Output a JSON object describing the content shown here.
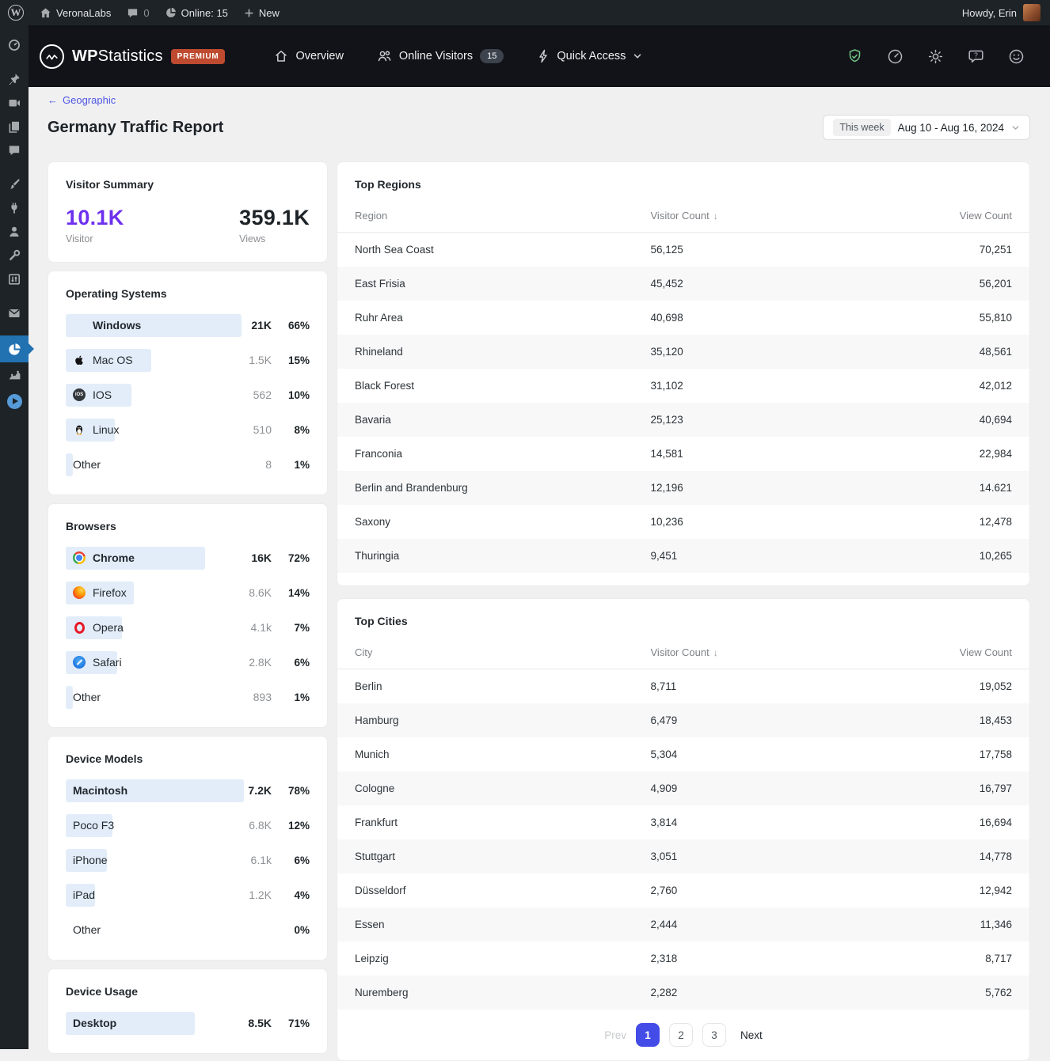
{
  "admin_bar": {
    "site_name": "VeronaLabs",
    "comments_count": "0",
    "online_label": "Online: 15",
    "new_label": "New",
    "howdy": "Howdy, Erin"
  },
  "plugin_header": {
    "brand_wp": "WP",
    "brand_rest": "Statistics",
    "premium": "PREMIUM",
    "nav_overview": "Overview",
    "nav_online": "Online Visitors",
    "online_badge": "15",
    "nav_quick": "Quick Access"
  },
  "page": {
    "back_arrow": "←",
    "breadcrumb_back": "Geographic",
    "title": "Germany Traffic Report",
    "date_chip": "This week",
    "date_range": "Aug 10 - Aug 16, 2024"
  },
  "summary": {
    "title": "Visitor Summary",
    "visitor_value": "10.1K",
    "visitor_label": "Visitor",
    "views_value": "359.1K",
    "views_label": "Views"
  },
  "cards": {
    "os": {
      "title": "Operating Systems",
      "items": [
        {
          "label": "Windows",
          "value": "21K",
          "pct": "66%",
          "bar": "72%"
        },
        {
          "label": "Mac OS",
          "value": "1.5K",
          "pct": "15%",
          "bar": "35%"
        },
        {
          "label": "IOS",
          "value": "562",
          "pct": "10%",
          "bar": "27%"
        },
        {
          "label": "Linux",
          "value": "510",
          "pct": "8%",
          "bar": "20%"
        },
        {
          "label": "Other",
          "value": "8",
          "pct": "1%",
          "bar": "3%"
        }
      ]
    },
    "browsers": {
      "title": "Browsers",
      "items": [
        {
          "label": "Chrome",
          "value": "16K",
          "pct": "72%",
          "bar": "57%"
        },
        {
          "label": "Firefox",
          "value": "8.6K",
          "pct": "14%",
          "bar": "28%"
        },
        {
          "label": "Opera",
          "value": "4.1k",
          "pct": "7%",
          "bar": "23%"
        },
        {
          "label": "Safari",
          "value": "2.8K",
          "pct": "6%",
          "bar": "21%"
        },
        {
          "label": "Other",
          "value": "893",
          "pct": "1%",
          "bar": "3%"
        }
      ]
    },
    "models": {
      "title": "Device Models",
      "items": [
        {
          "label": "Macintosh",
          "value": "7.2K",
          "pct": "78%",
          "bar": "73%"
        },
        {
          "label": "Poco F3",
          "value": "6.8K",
          "pct": "12%",
          "bar": "19%"
        },
        {
          "label": "iPhone",
          "value": "6.1k",
          "pct": "6%",
          "bar": "17%"
        },
        {
          "label": "iPad",
          "value": "1.2K",
          "pct": "4%",
          "bar": "12%"
        },
        {
          "label": "Other",
          "value": "",
          "pct": "0%",
          "bar": "0%"
        }
      ]
    },
    "usage": {
      "title": "Device Usage",
      "items": [
        {
          "label": "Desktop",
          "value": "8.5K",
          "pct": "71%",
          "bar": "53%"
        }
      ]
    }
  },
  "tables": {
    "regions": {
      "title": "Top Regions",
      "columns": [
        "Region",
        "Visitor Count",
        "View Count"
      ],
      "sort_arrow": "↓",
      "rows": [
        [
          "North Sea Coast",
          "56,125",
          "70,251"
        ],
        [
          "East Frisia",
          "45,452",
          "56,201"
        ],
        [
          "Ruhr Area",
          "40,698",
          "55,810"
        ],
        [
          "Rhineland",
          "35,120",
          "48,561"
        ],
        [
          "Black Forest",
          "31,102",
          "42,012"
        ],
        [
          "Bavaria",
          "25,123",
          "40,694"
        ],
        [
          "Franconia",
          "14,581",
          "22,984"
        ],
        [
          "Berlin and Brandenburg",
          "12,196",
          "14.621"
        ],
        [
          "Saxony",
          "10,236",
          "12,478"
        ],
        [
          "Thuringia",
          "9,451",
          "10,265"
        ]
      ]
    },
    "cities": {
      "title": "Top Cities",
      "columns": [
        "City",
        "Visitor Count",
        "View Count"
      ],
      "sort_arrow": "↓",
      "rows": [
        [
          "Berlin",
          "8,711",
          "19,052"
        ],
        [
          "Hamburg",
          "6,479",
          "18,453"
        ],
        [
          "Munich",
          "5,304",
          "17,758"
        ],
        [
          "Cologne",
          "4,909",
          "16,797"
        ],
        [
          "Frankfurt",
          "3,814",
          "16,694"
        ],
        [
          "Stuttgart",
          "3,051",
          "14,778"
        ],
        [
          "Düsseldorf",
          "2,760",
          "12,942"
        ],
        [
          "Essen",
          "2,444",
          "11,346"
        ],
        [
          "Leipzig",
          "2,318",
          "8,717"
        ],
        [
          "Nuremberg",
          "2,282",
          "5,762"
        ]
      ]
    }
  },
  "pagination": {
    "prev": "Prev",
    "pages": [
      "1",
      "2",
      "3"
    ],
    "active_page": "1",
    "next": "Next"
  },
  "colors": {
    "accent_purple": "#6e30ee",
    "active_menu_blue": "#2271b1",
    "pagination_active": "#444ce7",
    "premium_badge": "#be4a2f",
    "bar_fill": "#e2edf9",
    "breadcrumb_link": "#4e56e3",
    "admin_dark": "#1d2327",
    "plugin_header_dark": "#121319",
    "content_bg": "#f0f0f1"
  }
}
